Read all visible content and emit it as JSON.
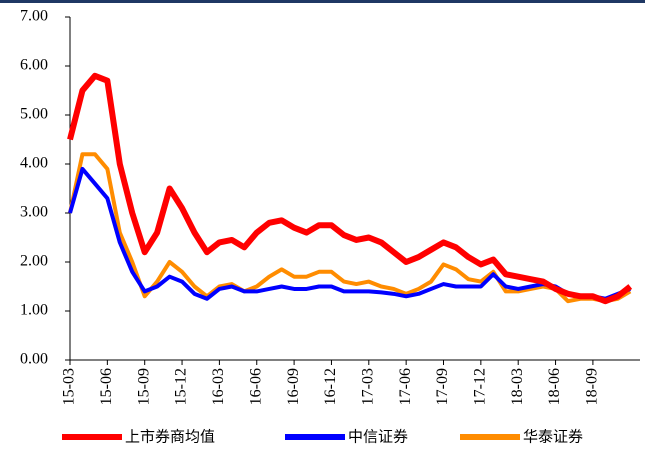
{
  "chart_data": {
    "type": "line",
    "categories": [
      "15-03",
      null,
      null,
      "15-06",
      null,
      null,
      "15-09",
      null,
      null,
      "15-12",
      null,
      null,
      "16-03",
      null,
      null,
      "16-06",
      null,
      null,
      "16-09",
      null,
      null,
      "16-12",
      null,
      null,
      "17-03",
      null,
      null,
      "17-06",
      null,
      null,
      "17-09",
      null,
      null,
      "17-12",
      null,
      null,
      "18-03",
      null,
      null,
      "18-06",
      null,
      null,
      "18-09",
      null,
      null,
      null
    ],
    "series": [
      {
        "name": "上市券商均值",
        "color": "#ff0000",
        "values": [
          4.5,
          5.5,
          5.8,
          5.7,
          4.0,
          3.0,
          2.2,
          2.6,
          3.5,
          3.1,
          2.6,
          2.2,
          2.4,
          2.45,
          2.3,
          2.6,
          2.8,
          2.85,
          2.7,
          2.6,
          2.75,
          2.75,
          2.55,
          2.45,
          2.5,
          2.4,
          2.2,
          2.0,
          2.1,
          2.25,
          2.4,
          2.3,
          2.1,
          1.95,
          2.05,
          1.75,
          1.7,
          1.65,
          1.6,
          1.45,
          1.35,
          1.3,
          1.3,
          1.2,
          1.3,
          1.5
        ]
      },
      {
        "name": "中信证券",
        "color": "#0000ff",
        "values": [
          3.0,
          3.9,
          3.6,
          3.3,
          2.4,
          1.8,
          1.4,
          1.5,
          1.7,
          1.6,
          1.35,
          1.25,
          1.45,
          1.5,
          1.4,
          1.4,
          1.45,
          1.5,
          1.45,
          1.45,
          1.5,
          1.5,
          1.4,
          1.4,
          1.4,
          1.38,
          1.35,
          1.3,
          1.35,
          1.45,
          1.55,
          1.5,
          1.5,
          1.5,
          1.75,
          1.5,
          1.45,
          1.5,
          1.55,
          1.5,
          1.35,
          1.3,
          1.3,
          1.25,
          1.35,
          1.45
        ]
      },
      {
        "name": "华泰证券",
        "color": "#ff8c00",
        "values": [
          3.0,
          4.2,
          4.2,
          3.9,
          2.6,
          2.0,
          1.3,
          1.6,
          2.0,
          1.8,
          1.5,
          1.3,
          1.5,
          1.55,
          1.4,
          1.5,
          1.7,
          1.85,
          1.7,
          1.7,
          1.8,
          1.8,
          1.6,
          1.55,
          1.6,
          1.5,
          1.45,
          1.35,
          1.45,
          1.6,
          1.95,
          1.85,
          1.65,
          1.6,
          1.8,
          1.4,
          1.4,
          1.45,
          1.5,
          1.45,
          1.2,
          1.25,
          1.25,
          1.2,
          1.25,
          1.4
        ]
      }
    ],
    "ylim": [
      0,
      7
    ],
    "yticks": [
      {
        "value": 0,
        "label": "0.00"
      },
      {
        "value": 1,
        "label": "1.00"
      },
      {
        "value": 2,
        "label": "2.00"
      },
      {
        "value": 3,
        "label": "3.00"
      },
      {
        "value": 4,
        "label": "4.00"
      },
      {
        "value": 5,
        "label": "5.00"
      },
      {
        "value": 6,
        "label": "6.00"
      },
      {
        "value": 7,
        "label": "7.00"
      }
    ]
  }
}
